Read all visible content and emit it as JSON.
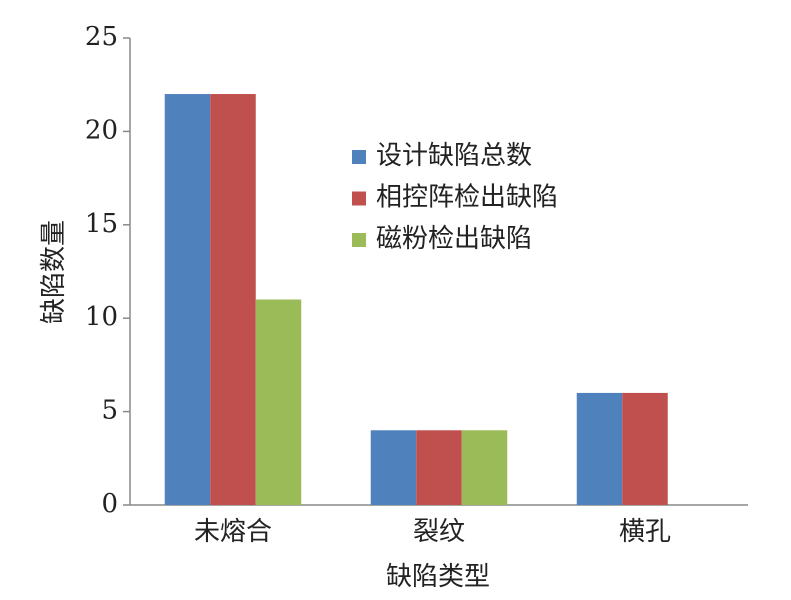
{
  "chart_data": {
    "type": "bar",
    "categories": [
      "未熔合",
      "裂纹",
      "横孔"
    ],
    "series": [
      {
        "name": "设计缺陷总数",
        "color": "#4f81bd",
        "values": [
          22,
          4,
          6
        ]
      },
      {
        "name": "相控阵检出缺陷",
        "color": "#c0504d",
        "values": [
          22,
          4,
          6
        ]
      },
      {
        "name": "磁粉检出缺陷",
        "color": "#9bbb59",
        "values": [
          11,
          4,
          0
        ]
      }
    ],
    "xlabel": "缺陷类型",
    "ylabel": "缺陷数量",
    "ylim": [
      0,
      25
    ],
    "yticks": [
      0,
      5,
      10,
      15,
      20,
      25
    ],
    "grid": false
  }
}
